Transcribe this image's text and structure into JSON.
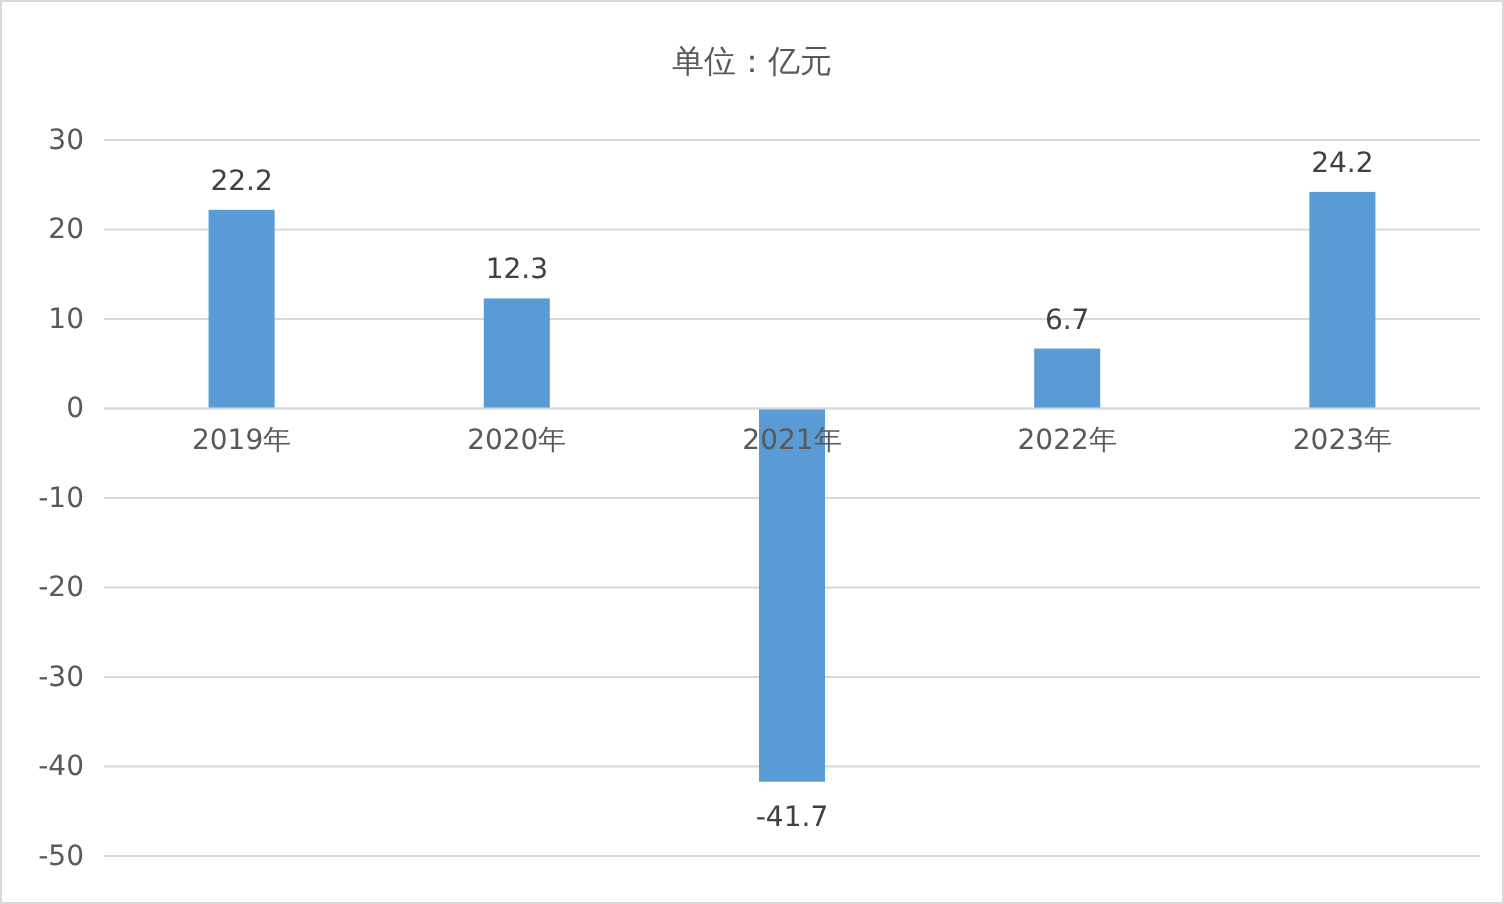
{
  "chart_data": {
    "type": "bar",
    "title": "单位：亿元",
    "categories": [
      "2019年",
      "2020年",
      "2021年",
      "2022年",
      "2023年"
    ],
    "values": [
      22.2,
      12.3,
      -41.7,
      6.7,
      24.2
    ],
    "color": "#5b9bd5",
    "ylim": [
      -50,
      30
    ],
    "yticks": [
      -50,
      -40,
      -30,
      -20,
      -10,
      0,
      10,
      20,
      30
    ],
    "grid": "y",
    "data_labels": true
  }
}
